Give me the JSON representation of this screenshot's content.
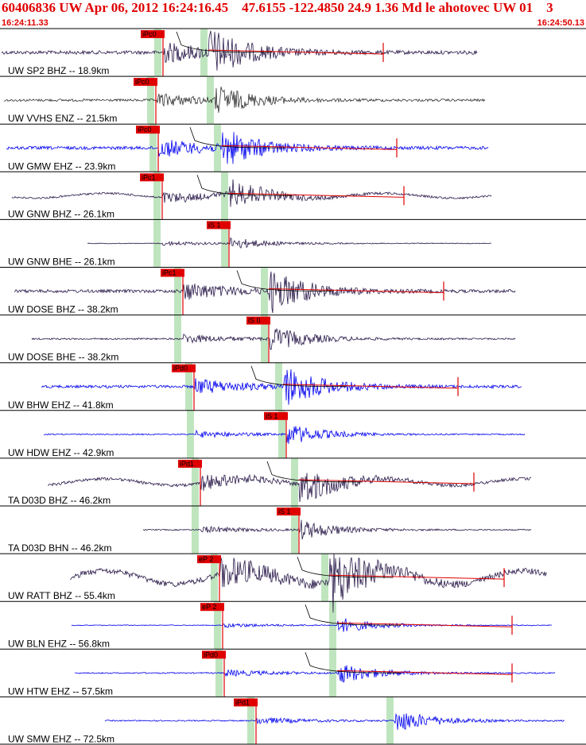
{
  "header": {
    "title": "60406836 UW Apr 06, 2012 16:24:16.45    47.6155 -122.4850 24.9 1.36 Md le ahotovec UW 01    3",
    "time_start": "16:24:11.33",
    "time_end": "16:24:50.13"
  },
  "colors": {
    "accent": "#e00000",
    "trace_dark": "#2a1a4a",
    "trace_gray": "#333333",
    "trace_blue": "#0000ee",
    "pick_window": "#bfe5bf"
  },
  "chart_data": {
    "type": "line",
    "x_axis": {
      "start": "16:24:11.33",
      "end": "16:24:50.13"
    },
    "traces": [
      {
        "label": "UW SP2 BHZ -- 18.9km",
        "pick": "iPc0",
        "color": "trace_dark",
        "coda": true
      },
      {
        "label": "UW VVHS ENZ -- 21.5km",
        "pick": "iPc0",
        "color": "trace_gray",
        "coda": false
      },
      {
        "label": "UW GMW EHZ -- 23.9km",
        "pick": "iPc0",
        "color": "trace_blue",
        "coda": true
      },
      {
        "label": "UW GNW BHZ -- 26.1km",
        "pick": "iPc1",
        "color": "trace_dark",
        "coda": true
      },
      {
        "label": "UW GNW BHE -- 26.1km",
        "pick": "iS 1",
        "color": "trace_dark",
        "coda": false
      },
      {
        "label": "UW DOSE BHZ -- 38.2km",
        "pick": "iPc1",
        "color": "trace_dark",
        "coda": true
      },
      {
        "label": "UW DOSE BHE -- 38.2km",
        "pick": "iS 0",
        "color": "trace_dark",
        "coda": false
      },
      {
        "label": "UW BHW EHZ -- 41.8km",
        "pick": "iPd0",
        "color": "trace_blue",
        "coda": true
      },
      {
        "label": "UW HDW EHZ -- 42.9km",
        "pick": "iS 1",
        "color": "trace_blue",
        "coda": false
      },
      {
        "label": "TA D03D BHZ -- 46.2km",
        "pick": "iPd1",
        "color": "trace_dark",
        "coda": true
      },
      {
        "label": "TA D03D BHN -- 46.2km",
        "pick": "iS 1",
        "color": "trace_dark",
        "coda": false
      },
      {
        "label": "UW RATT BHZ -- 55.4km",
        "pick": "eP 2",
        "color": "trace_dark",
        "coda": true
      },
      {
        "label": "UW BLN EHZ -- 56.8km",
        "pick": "eP 2",
        "color": "trace_blue",
        "coda": true
      },
      {
        "label": "UW HTW EHZ -- 57.5km",
        "pick": "iPd0",
        "color": "trace_blue",
        "coda": true
      },
      {
        "label": "UW SMW EHZ -- 72.5km",
        "pick": "iPd1",
        "color": "trace_blue",
        "coda": false
      }
    ]
  }
}
